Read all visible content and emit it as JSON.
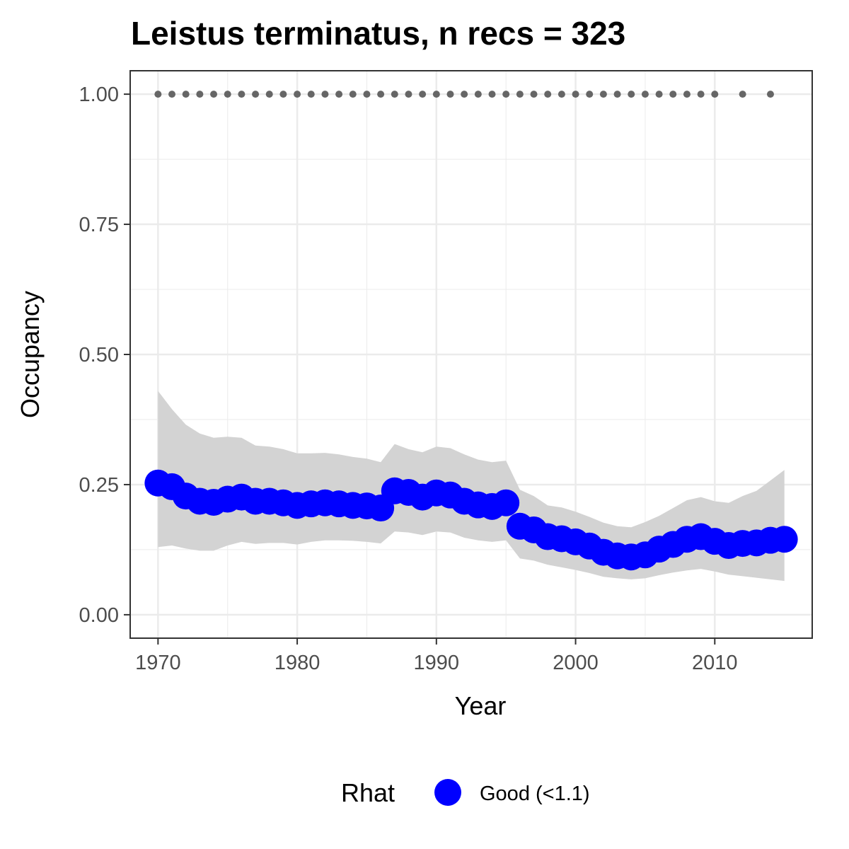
{
  "chart_data": {
    "type": "line",
    "title": "Leistus terminatus, n recs = 323",
    "xlabel": "Year",
    "ylabel": "Occupancy",
    "xlim": [
      1968,
      2017
    ],
    "ylim": [
      -0.045,
      1.045
    ],
    "x_ticks": [
      1970,
      1980,
      1990,
      2000,
      2010
    ],
    "x_tick_labels": [
      "1970",
      "1980",
      "1990",
      "2000",
      "2010"
    ],
    "y_ticks": [
      0,
      0.25,
      0.5,
      0.75,
      1.0
    ],
    "y_tick_labels": [
      "0.00",
      "0.25",
      "0.50",
      "0.75",
      "1.00"
    ],
    "grid": true,
    "colors": {
      "point": "#0000ff",
      "ribbon": "#d3d3d3",
      "record_dots": "#666666",
      "grid_major": "#ebebeb",
      "panel_border": "#333333"
    },
    "record_years": [
      1970,
      1971,
      1972,
      1973,
      1974,
      1975,
      1976,
      1977,
      1978,
      1979,
      1980,
      1981,
      1982,
      1983,
      1984,
      1985,
      1986,
      1987,
      1988,
      1989,
      1990,
      1991,
      1992,
      1993,
      1994,
      1995,
      1996,
      1997,
      1998,
      1999,
      2000,
      2001,
      2002,
      2003,
      2004,
      2005,
      2006,
      2007,
      2008,
      2009,
      2010,
      2012,
      2014
    ],
    "record_value": 1.0,
    "occupancy": {
      "x": [
        1970,
        1971,
        1972,
        1973,
        1974,
        1975,
        1976,
        1977,
        1978,
        1979,
        1980,
        1981,
        1982,
        1983,
        1984,
        1985,
        1986,
        1987,
        1988,
        1989,
        1990,
        1991,
        1992,
        1993,
        1994,
        1995,
        1996,
        1997,
        1998,
        1999,
        2000,
        2001,
        2002,
        2003,
        2004,
        2005,
        2006,
        2007,
        2008,
        2009,
        2010,
        2011,
        2012,
        2013,
        2014,
        2015
      ],
      "mean": [
        0.253,
        0.246,
        0.228,
        0.218,
        0.216,
        0.222,
        0.226,
        0.218,
        0.218,
        0.215,
        0.21,
        0.213,
        0.215,
        0.213,
        0.21,
        0.209,
        0.205,
        0.238,
        0.235,
        0.226,
        0.234,
        0.23,
        0.218,
        0.211,
        0.208,
        0.215,
        0.17,
        0.163,
        0.15,
        0.146,
        0.14,
        0.132,
        0.12,
        0.113,
        0.111,
        0.115,
        0.126,
        0.135,
        0.145,
        0.15,
        0.141,
        0.133,
        0.137,
        0.138,
        0.143,
        0.145
      ],
      "lower": [
        0.13,
        0.133,
        0.127,
        0.123,
        0.123,
        0.133,
        0.14,
        0.136,
        0.138,
        0.138,
        0.135,
        0.14,
        0.143,
        0.143,
        0.142,
        0.14,
        0.137,
        0.16,
        0.158,
        0.153,
        0.16,
        0.158,
        0.148,
        0.143,
        0.14,
        0.143,
        0.108,
        0.104,
        0.096,
        0.091,
        0.086,
        0.08,
        0.073,
        0.07,
        0.068,
        0.07,
        0.076,
        0.081,
        0.085,
        0.088,
        0.083,
        0.077,
        0.074,
        0.071,
        0.068,
        0.065
      ],
      "upper": [
        0.43,
        0.395,
        0.365,
        0.348,
        0.34,
        0.342,
        0.34,
        0.325,
        0.323,
        0.318,
        0.31,
        0.31,
        0.311,
        0.308,
        0.303,
        0.3,
        0.293,
        0.328,
        0.318,
        0.312,
        0.323,
        0.32,
        0.308,
        0.298,
        0.293,
        0.296,
        0.24,
        0.228,
        0.21,
        0.206,
        0.198,
        0.188,
        0.177,
        0.17,
        0.168,
        0.178,
        0.19,
        0.205,
        0.22,
        0.226,
        0.218,
        0.215,
        0.228,
        0.238,
        0.258,
        0.278
      ]
    },
    "legend": {
      "title": "Rhat",
      "entries": [
        {
          "label": "Good (<1.1)",
          "color": "#0000ff"
        }
      ],
      "position": "bottom"
    }
  }
}
